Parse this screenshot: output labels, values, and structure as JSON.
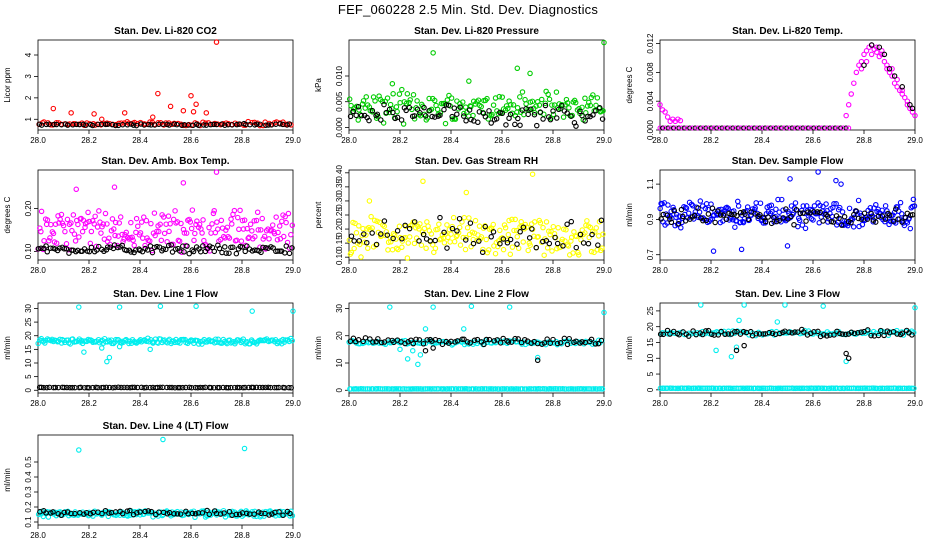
{
  "page_title": "FEF_060228  2.5 Min. Std. Dev. Diagnostics",
  "colors": {
    "red": "#ff0000",
    "green": "#00cc00",
    "magenta": "#ff00ff",
    "yellow": "#ffff00",
    "blue": "#0000ff",
    "cyan": "#00eeee",
    "black": "#000000"
  },
  "chart_data": [
    {
      "type": "scatter",
      "title": "Stan. Dev. Li-820 CO2",
      "xlabel": "",
      "ylabel": "Licor ppm",
      "xlim": [
        28.0,
        29.0
      ],
      "ylim": [
        0.5,
        4.7
      ],
      "xticks": [
        "28.0",
        "28.2",
        "28.4",
        "28.6",
        "28.8",
        "29.0"
      ],
      "yticks": [
        "1",
        "2",
        "3",
        "4"
      ],
      "series": [
        {
          "name": "primary",
          "color": "red",
          "base": 0.8,
          "spread": 0.12,
          "n": 90,
          "extra": [
            [
              28.06,
              1.5
            ],
            [
              28.13,
              1.3
            ],
            [
              28.22,
              1.25
            ],
            [
              28.34,
              1.3
            ],
            [
              28.47,
              2.2
            ],
            [
              28.52,
              1.6
            ],
            [
              28.57,
              1.4
            ],
            [
              28.6,
              2.1
            ],
            [
              28.62,
              1.7
            ],
            [
              28.66,
              1.3
            ],
            [
              28.7,
              4.6
            ],
            [
              28.61,
              1.35
            ],
            [
              28.45,
              1.1
            ],
            [
              28.25,
              1.0
            ]
          ]
        },
        {
          "name": "secondary",
          "color": "black",
          "base": 0.75,
          "spread": 0.05,
          "n": 70,
          "extra": []
        }
      ]
    },
    {
      "type": "scatter",
      "title": "Stan. Dev. Li-820 Pressure",
      "xlabel": "",
      "ylabel": "kPa",
      "xlim": [
        28.0,
        29.0
      ],
      "ylim": [
        -0.0005,
        0.017
      ],
      "xticks": [
        "28.0",
        "28.2",
        "28.4",
        "28.6",
        "28.8",
        "29.0"
      ],
      "yticks": [
        "0.000",
        "0.005",
        "0.010"
      ],
      "series": [
        {
          "name": "primary",
          "color": "green",
          "base": 0.004,
          "spread": 0.0035,
          "n": 180,
          "extra": [
            [
              28.33,
              0.0145
            ],
            [
              28.66,
              0.0115
            ],
            [
              28.71,
              0.0105
            ],
            [
              29.0,
              0.0165
            ],
            [
              28.17,
              0.0085
            ],
            [
              28.47,
              0.009
            ]
          ]
        },
        {
          "name": "secondary",
          "color": "black",
          "base": 0.0025,
          "spread": 0.0025,
          "n": 90,
          "extra": []
        }
      ]
    },
    {
      "type": "scatter",
      "title": "Stan. Dev. Li-820 Temp.",
      "xlabel": "",
      "ylabel": "degrees C",
      "xlim": [
        28.0,
        29.0
      ],
      "ylim": [
        0.0,
        0.0125
      ],
      "xticks": [
        "28.0",
        "28.2",
        "28.4",
        "28.6",
        "28.8",
        "29.0"
      ],
      "yticks": [
        "0.000",
        "0.004",
        "0.008",
        "0.012"
      ],
      "series": [
        {
          "name": "primary",
          "color": "magenta",
          "base": 0.0,
          "spread": 0.0,
          "n": 0,
          "extra": [
            [
              28.0,
              0.0035
            ],
            [
              28.01,
              0.0028
            ],
            [
              28.02,
              0.0025
            ],
            [
              28.03,
              0.0018
            ],
            [
              28.04,
              0.0012
            ],
            [
              28.05,
              0.0015
            ],
            [
              28.06,
              0.0012
            ],
            [
              28.07,
              0.0015
            ],
            [
              28.08,
              0.0013
            ],
            [
              28.73,
              0.002
            ],
            [
              28.74,
              0.0035
            ],
            [
              28.75,
              0.005
            ],
            [
              28.76,
              0.0065
            ],
            [
              28.77,
              0.008
            ],
            [
              28.78,
              0.009
            ],
            [
              28.79,
              0.0095
            ],
            [
              28.8,
              0.0105
            ],
            [
              28.81,
              0.011
            ],
            [
              28.82,
              0.0115
            ],
            [
              28.83,
              0.0118
            ],
            [
              28.84,
              0.0112
            ],
            [
              28.85,
              0.0108
            ],
            [
              28.86,
              0.0102
            ],
            [
              28.87,
              0.0105
            ],
            [
              28.88,
              0.0095
            ],
            [
              28.89,
              0.009
            ],
            [
              28.9,
              0.008
            ],
            [
              28.91,
              0.0075
            ],
            [
              28.92,
              0.0065
            ],
            [
              28.93,
              0.006
            ],
            [
              28.94,
              0.0055
            ],
            [
              28.95,
              0.005
            ],
            [
              28.96,
              0.0045
            ],
            [
              28.97,
              0.004
            ],
            [
              28.98,
              0.003
            ],
            [
              28.99,
              0.0025
            ],
            [
              29.0,
              0.002
            ],
            [
              28.79,
              0.0085
            ],
            [
              28.81,
              0.0095
            ],
            [
              28.83,
              0.0105
            ],
            [
              28.85,
              0.0115
            ],
            [
              28.87,
              0.011
            ],
            [
              28.89,
              0.0085
            ],
            [
              28.91,
              0.0085
            ],
            [
              28.93,
              0.007
            ],
            [
              28.95,
              0.0055
            ],
            [
              28.97,
              0.0035
            ]
          ]
        },
        {
          "name": "secondary",
          "color": "black",
          "base": 0.0,
          "spread": 0.0,
          "n": 0,
          "extra": [
            [
              28.8,
              0.009
            ],
            [
              28.83,
              0.0118
            ],
            [
              28.86,
              0.0115
            ],
            [
              28.88,
              0.0105
            ],
            [
              28.9,
              0.0085
            ],
            [
              28.92,
              0.0075
            ],
            [
              28.95,
              0.006
            ],
            [
              28.98,
              0.0035
            ],
            [
              28.99,
              0.003
            ]
          ]
        }
      ],
      "flatline": {
        "from": 28.0,
        "to": 28.74,
        "value": 0.0
      }
    },
    {
      "type": "scatter",
      "title": "Stan. Dev. Amb. Box Temp.",
      "xlabel": "",
      "ylabel": "degrees C",
      "xlim": [
        28.0,
        29.0
      ],
      "ylim": [
        0.08,
        0.29
      ],
      "xticks": [
        "28.0",
        "28.2",
        "28.4",
        "28.6",
        "28.8",
        "29.0"
      ],
      "yticks": [
        "0.10",
        "0.20"
      ],
      "series": [
        {
          "name": "primary",
          "color": "magenta",
          "base": 0.15,
          "spread": 0.055,
          "n": 220,
          "extra": [
            [
              28.7,
              0.285
            ],
            [
              28.57,
              0.26
            ],
            [
              28.3,
              0.25
            ],
            [
              28.15,
              0.245
            ]
          ]
        },
        {
          "name": "secondary",
          "color": "black",
          "base": 0.105,
          "spread": 0.012,
          "n": 110,
          "extra": []
        }
      ]
    },
    {
      "type": "scatter",
      "title": "Stan. Dev. Gas Stream RH",
      "xlabel": "",
      "ylabel": "percent",
      "xlim": [
        28.0,
        29.0
      ],
      "ylim": [
        0.09,
        0.41
      ],
      "xticks": [
        "28.0",
        "28.2",
        "28.4",
        "28.6",
        "28.8",
        "29.0"
      ],
      "yticks": [
        "0.10",
        "0.15",
        "0.20",
        "0.25",
        "0.30",
        "0.35",
        "0.40"
      ],
      "series": [
        {
          "name": "primary",
          "color": "yellow",
          "base": 0.17,
          "spread": 0.08,
          "n": 220,
          "extra": [
            [
              28.72,
              0.395
            ],
            [
              28.29,
              0.37
            ],
            [
              28.46,
              0.33
            ],
            [
              28.08,
              0.3
            ]
          ]
        },
        {
          "name": "secondary",
          "color": "black",
          "base": 0.18,
          "spread": 0.075,
          "n": 60,
          "extra": []
        }
      ]
    },
    {
      "type": "scatter",
      "title": "Stan. Dev. Sample Flow",
      "xlabel": "",
      "ylabel": "ml/min",
      "xlim": [
        28.0,
        29.0
      ],
      "ylim": [
        0.67,
        1.18
      ],
      "xticks": [
        "28.0",
        "28.2",
        "28.4",
        "28.6",
        "28.8",
        "29.0"
      ],
      "yticks": [
        "0.7",
        "0.9",
        "1.1"
      ],
      "series": [
        {
          "name": "primary",
          "color": "blue",
          "base": 0.93,
          "spread": 0.09,
          "n": 260,
          "extra": [
            [
              28.62,
              1.17
            ],
            [
              28.51,
              1.13
            ],
            [
              28.69,
              1.12
            ],
            [
              28.71,
              1.1
            ],
            [
              28.21,
              0.72
            ],
            [
              28.32,
              0.73
            ],
            [
              28.5,
              0.75
            ]
          ]
        },
        {
          "name": "secondary",
          "color": "black",
          "base": 0.92,
          "spread": 0.06,
          "n": 90,
          "extra": []
        }
      ]
    },
    {
      "type": "scatter",
      "title": "Stan. Dev. Line 1 Flow",
      "xlabel": "",
      "ylabel": "ml/min",
      "xlim": [
        28.0,
        29.0
      ],
      "ylim": [
        -1,
        32
      ],
      "xticks": [
        "28.0",
        "28.2",
        "28.4",
        "28.6",
        "28.8",
        "29.0"
      ],
      "yticks": [
        "0",
        "5",
        "10",
        "15",
        "20",
        "25",
        "30"
      ],
      "series": [
        {
          "name": "primary",
          "color": "cyan",
          "base": 18.0,
          "spread": 1.2,
          "n": 200,
          "extra": [
            [
              28.16,
              30.5
            ],
            [
              28.32,
              30.5
            ],
            [
              28.48,
              30.8
            ],
            [
              28.62,
              30.8
            ],
            [
              28.84,
              29.0
            ],
            [
              29.0,
              29.0
            ],
            [
              28.27,
              10.5
            ],
            [
              28.18,
              14
            ],
            [
              28.28,
              12
            ],
            [
              28.44,
              15
            ],
            [
              28.32,
              16
            ],
            [
              28.25,
              15.5
            ]
          ]
        },
        {
          "name": "secondary",
          "color": "black",
          "base": 1.0,
          "spread": 0.1,
          "n": 90,
          "extra": []
        }
      ]
    },
    {
      "type": "scatter",
      "title": "Stan. Dev. Line 2 Flow",
      "xlabel": "",
      "ylabel": "ml/min",
      "xlim": [
        28.0,
        29.0
      ],
      "ylim": [
        -1,
        32
      ],
      "xticks": [
        "28.0",
        "28.2",
        "28.4",
        "28.6",
        "28.8",
        "29.0"
      ],
      "yticks": [
        "0",
        "10",
        "20",
        "30"
      ],
      "series": [
        {
          "name": "primary",
          "color": "cyan",
          "base": 17.5,
          "spread": 1.0,
          "n": 120,
          "extra": [
            [
              28.16,
              30.5
            ],
            [
              28.33,
              30.5
            ],
            [
              28.48,
              30.8
            ],
            [
              28.63,
              30.5
            ],
            [
              29.0,
              28.5
            ],
            [
              28.27,
              9.5
            ],
            [
              28.23,
              11.5
            ],
            [
              28.28,
              13
            ],
            [
              28.25,
              14.5
            ],
            [
              28.3,
              22.5
            ],
            [
              28.45,
              22.5
            ],
            [
              28.74,
              12
            ],
            [
              28.2,
              15
            ],
            [
              28.32,
              18.5
            ]
          ]
        },
        {
          "name": "baseline",
          "color": "cyan",
          "base": 0.5,
          "spread": 0.05,
          "n": 140,
          "extra": []
        },
        {
          "name": "secondary",
          "color": "black",
          "base": 18.0,
          "spread": 1.3,
          "n": 80,
          "extra": [
            [
              28.33,
              15.5
            ],
            [
              28.74,
              11.0
            ],
            [
              28.3,
              14.5
            ]
          ]
        }
      ]
    },
    {
      "type": "scatter",
      "title": "Stan. Dev. Line 3 Flow",
      "xlabel": "",
      "ylabel": "ml/min",
      "xlim": [
        28.0,
        29.0
      ],
      "ylim": [
        -1,
        27.5
      ],
      "xticks": [
        "28.0",
        "28.2",
        "28.4",
        "28.6",
        "28.8",
        "29.0"
      ],
      "yticks": [
        "0",
        "5",
        "10",
        "15",
        "20",
        "25"
      ],
      "series": [
        {
          "name": "primary",
          "color": "cyan",
          "base": 18.0,
          "spread": 0.9,
          "n": 110,
          "extra": [
            [
              28.16,
              27.0
            ],
            [
              28.33,
              27.0
            ],
            [
              28.49,
              27.0
            ],
            [
              28.64,
              26.5
            ],
            [
              29.0,
              26.0
            ],
            [
              28.28,
              10.5
            ],
            [
              28.3,
              13.5
            ],
            [
              28.73,
              9
            ],
            [
              28.31,
              22
            ],
            [
              28.46,
              21.5
            ],
            [
              28.22,
              12.5
            ]
          ]
        },
        {
          "name": "baseline",
          "color": "cyan",
          "base": 0.5,
          "spread": 0.05,
          "n": 140,
          "extra": []
        },
        {
          "name": "secondary",
          "color": "black",
          "base": 18.0,
          "spread": 1.2,
          "n": 80,
          "extra": [
            [
              28.33,
              14.0
            ],
            [
              28.74,
              10.0
            ],
            [
              28.3,
              12.5
            ],
            [
              28.73,
              11.5
            ]
          ]
        }
      ]
    },
    {
      "type": "scatter",
      "title": "Stan. Dev. Line 4 (LT) Flow",
      "xlabel": "",
      "ylabel": "ml/min",
      "xlim": [
        28.0,
        29.0
      ],
      "ylim": [
        0.08,
        0.68
      ],
      "xticks": [
        "28.0",
        "28.2",
        "28.4",
        "28.6",
        "28.8",
        "29.0"
      ],
      "yticks": [
        "0.1",
        "0.2",
        "0.3",
        "0.4",
        "0.5"
      ],
      "series": [
        {
          "name": "primary",
          "color": "cyan",
          "base": 0.155,
          "spread": 0.025,
          "n": 200,
          "extra": [
            [
              28.16,
              0.58
            ],
            [
              28.49,
              0.65
            ],
            [
              28.81,
              0.59
            ]
          ]
        },
        {
          "name": "secondary",
          "color": "black",
          "base": 0.16,
          "spread": 0.02,
          "n": 70,
          "extra": []
        }
      ]
    }
  ]
}
